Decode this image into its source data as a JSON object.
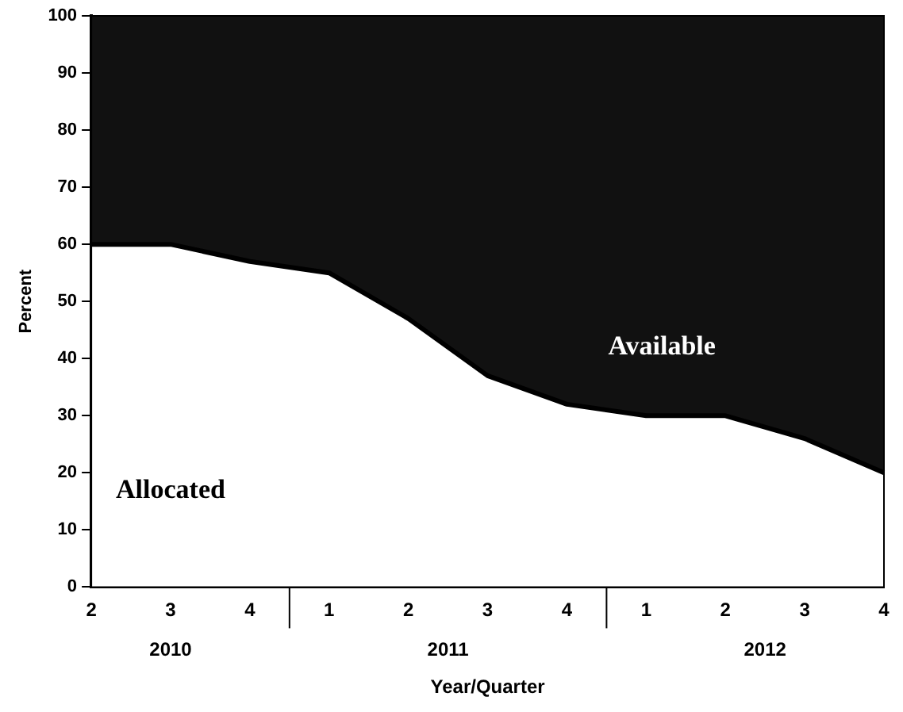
{
  "chart_data": {
    "type": "area",
    "stacked": true,
    "xlabel": "Year/Quarter",
    "ylabel": "Percent",
    "categories": [
      "2",
      "3",
      "4",
      "1",
      "2",
      "3",
      "4",
      "1",
      "2",
      "3",
      "4"
    ],
    "series": [
      {
        "name": "Allocated",
        "color": "#ffffff",
        "values": [
          60,
          60,
          57,
          55,
          47,
          37,
          32,
          30,
          30,
          26,
          20
        ]
      },
      {
        "name": "Available",
        "color": "#111111",
        "values": [
          40,
          40,
          43,
          45,
          53,
          63,
          68,
          70,
          70,
          74,
          80
        ]
      }
    ],
    "ylim": [
      0,
      100
    ],
    "yticks": [
      0,
      10,
      20,
      30,
      40,
      50,
      60,
      70,
      80,
      90,
      100
    ],
    "legend": false,
    "annotations": [
      "2010",
      "2011",
      "2012"
    ]
  }
}
